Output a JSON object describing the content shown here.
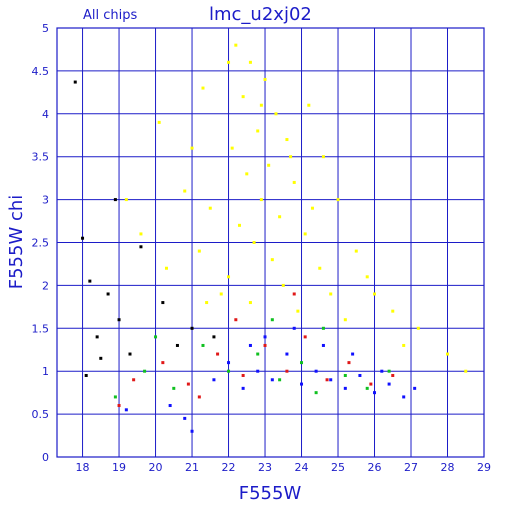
{
  "header": {
    "subset_label": "All chips",
    "field_label": "lmc_u2xj02"
  },
  "colors": {
    "axis": "#1c1cc8",
    "grid": "#1c1cc8",
    "chip_black": "#000000",
    "chip_yellow": "#ffff00",
    "chip_red": "#e01818",
    "chip_green": "#10c020",
    "chip_blue": "#1010ff"
  },
  "chart_data": {
    "type": "scatter",
    "title": "",
    "xlabel": "F555W",
    "ylabel": "F555W chi",
    "xlim": [
      17.3,
      29
    ],
    "ylim": [
      0,
      5
    ],
    "x_ticks": [
      "18",
      "19",
      "20",
      "21",
      "22",
      "23",
      "24",
      "25",
      "26",
      "27",
      "28",
      "29"
    ],
    "y_ticks": [
      "0",
      "0.5",
      "1",
      "1.5",
      "2",
      "2.5",
      "3",
      "3.5",
      "4",
      "4.5",
      "5"
    ],
    "grid": true,
    "legend": "none",
    "series": [
      {
        "color": "#ffff00",
        "description": "broad plume, densest around x≈23, chi up to 5",
        "points": [
          [
            22.2,
            4.8
          ],
          [
            22.6,
            4.6
          ],
          [
            23.0,
            4.4
          ],
          [
            22.4,
            4.2
          ],
          [
            23.3,
            4.0
          ],
          [
            22.8,
            3.8
          ],
          [
            23.6,
            3.7
          ],
          [
            22.1,
            3.6
          ],
          [
            23.1,
            3.4
          ],
          [
            22.5,
            3.3
          ],
          [
            23.8,
            3.2
          ],
          [
            22.9,
            3.0
          ],
          [
            21.5,
            2.9
          ],
          [
            23.4,
            2.8
          ],
          [
            22.3,
            2.7
          ],
          [
            24.1,
            2.6
          ],
          [
            22.7,
            2.5
          ],
          [
            21.2,
            2.4
          ],
          [
            23.2,
            2.3
          ],
          [
            24.5,
            2.2
          ],
          [
            22.0,
            2.1
          ],
          [
            23.5,
            2.0
          ],
          [
            21.8,
            1.9
          ],
          [
            24.8,
            1.9
          ],
          [
            22.6,
            1.8
          ],
          [
            23.9,
            1.7
          ],
          [
            25.2,
            1.6
          ],
          [
            21.4,
            1.8
          ],
          [
            20.3,
            2.2
          ],
          [
            19.6,
            2.6
          ],
          [
            20.8,
            3.1
          ],
          [
            21.0,
            3.6
          ],
          [
            19.2,
            3.0
          ],
          [
            20.1,
            3.9
          ],
          [
            21.3,
            4.3
          ],
          [
            22.0,
            4.6
          ],
          [
            24.2,
            4.1
          ],
          [
            24.6,
            3.5
          ],
          [
            25.0,
            3.0
          ],
          [
            25.5,
            2.4
          ],
          [
            26.0,
            1.9
          ],
          [
            26.5,
            1.7
          ],
          [
            27.2,
            1.5
          ],
          [
            28.0,
            1.2
          ],
          [
            28.5,
            1.0
          ],
          [
            26.8,
            1.3
          ],
          [
            24.3,
            2.9
          ],
          [
            23.7,
            3.5
          ],
          [
            22.9,
            4.1
          ],
          [
            25.8,
            2.1
          ]
        ]
      },
      {
        "color": "#000000",
        "description": "bright stars, chip 1",
        "points": [
          [
            17.8,
            4.37
          ],
          [
            18.0,
            2.55
          ],
          [
            18.2,
            2.05
          ],
          [
            18.7,
            1.9
          ],
          [
            18.4,
            1.4
          ],
          [
            19.0,
            1.6
          ],
          [
            18.5,
            1.15
          ],
          [
            19.6,
            2.45
          ],
          [
            19.3,
            1.2
          ],
          [
            20.2,
            1.8
          ],
          [
            21.0,
            1.5
          ],
          [
            20.6,
            1.3
          ],
          [
            21.6,
            1.4
          ],
          [
            18.9,
            3.0
          ],
          [
            18.1,
            0.95
          ]
        ]
      },
      {
        "color": "#e01818",
        "points": [
          [
            19.4,
            0.9
          ],
          [
            20.2,
            1.1
          ],
          [
            20.9,
            0.85
          ],
          [
            21.7,
            1.2
          ],
          [
            22.4,
            0.95
          ],
          [
            23.0,
            1.3
          ],
          [
            23.6,
            1.0
          ],
          [
            24.1,
            1.4
          ],
          [
            24.7,
            0.9
          ],
          [
            25.3,
            1.1
          ],
          [
            25.9,
            0.85
          ],
          [
            26.5,
            0.95
          ],
          [
            22.2,
            1.6
          ],
          [
            23.8,
            1.9
          ],
          [
            21.2,
            0.7
          ],
          [
            19.0,
            0.6
          ]
        ]
      },
      {
        "color": "#10c020",
        "points": [
          [
            18.9,
            0.7
          ],
          [
            19.7,
            1.0
          ],
          [
            20.5,
            0.8
          ],
          [
            21.3,
            1.3
          ],
          [
            22.0,
            1.0
          ],
          [
            22.8,
            1.2
          ],
          [
            23.4,
            0.9
          ],
          [
            24.0,
            1.1
          ],
          [
            24.6,
            1.5
          ],
          [
            25.2,
            0.95
          ],
          [
            25.8,
            0.8
          ],
          [
            26.4,
            1.0
          ],
          [
            20.0,
            1.4
          ],
          [
            23.2,
            1.6
          ],
          [
            24.4,
            0.75
          ]
        ]
      },
      {
        "color": "#1010ff",
        "description": "dense main locus, chi ≈ 0.6–1.2, x ≈ 21.5–27.2",
        "points": [
          [
            21.6,
            0.9
          ],
          [
            22.0,
            1.1
          ],
          [
            22.4,
            0.8
          ],
          [
            22.8,
            1.0
          ],
          [
            23.2,
            0.9
          ],
          [
            23.6,
            1.2
          ],
          [
            24.0,
            0.85
          ],
          [
            24.4,
            1.0
          ],
          [
            24.8,
            0.9
          ],
          [
            25.2,
            0.8
          ],
          [
            25.6,
            0.95
          ],
          [
            26.0,
            0.75
          ],
          [
            26.4,
            0.85
          ],
          [
            26.8,
            0.7
          ],
          [
            27.1,
            0.8
          ],
          [
            23.0,
            1.4
          ],
          [
            23.8,
            1.5
          ],
          [
            24.6,
            1.3
          ],
          [
            22.6,
            1.3
          ],
          [
            25.4,
            1.2
          ],
          [
            26.2,
            1.0
          ],
          [
            20.8,
            0.45
          ],
          [
            21.0,
            0.3
          ],
          [
            20.4,
            0.6
          ],
          [
            19.2,
            0.55
          ]
        ]
      }
    ]
  }
}
